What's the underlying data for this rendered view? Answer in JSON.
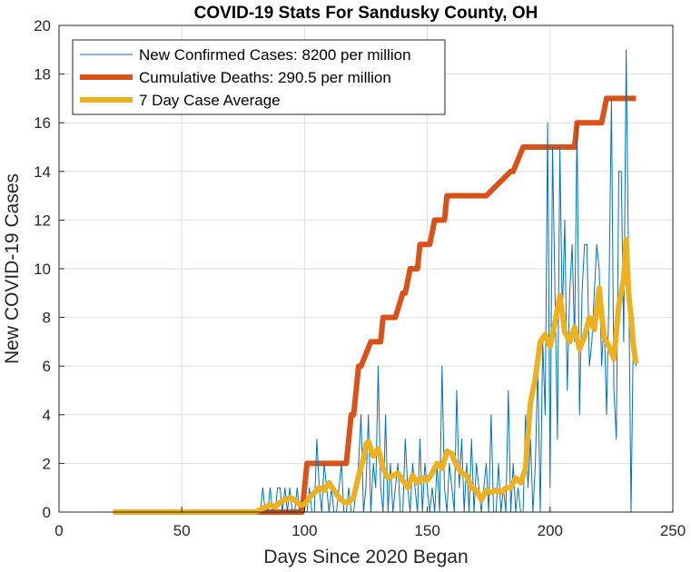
{
  "chart_data": {
    "type": "line",
    "title": "COVID-19 Stats For Sandusky County, OH",
    "xlabel": "Days Since 2020 Began",
    "ylabel": "New COVID-19 Cases",
    "xlim": [
      0,
      250
    ],
    "ylim": [
      0,
      20
    ],
    "xticks": [
      0,
      50,
      100,
      150,
      200,
      250
    ],
    "yticks": [
      0,
      2,
      4,
      6,
      8,
      10,
      12,
      14,
      16,
      18,
      20
    ],
    "grid": true,
    "legend_position": "top-left",
    "series": [
      {
        "name": "New Confirmed Cases: 8200 per million",
        "color": "#0072BD",
        "kind": "thin",
        "x": [
          22,
          30,
          40,
          50,
          60,
          70,
          80,
          82,
          83,
          84,
          85,
          86,
          87,
          88,
          89,
          90,
          91,
          92,
          93,
          94,
          95,
          96,
          97,
          98,
          99,
          100,
          101,
          102,
          103,
          104,
          105,
          106,
          107,
          108,
          109,
          110,
          111,
          112,
          113,
          114,
          115,
          116,
          117,
          118,
          119,
          120,
          121,
          122,
          123,
          124,
          125,
          126,
          127,
          128,
          129,
          130,
          131,
          132,
          133,
          134,
          135,
          136,
          137,
          138,
          139,
          140,
          141,
          142,
          143,
          144,
          145,
          146,
          147,
          148,
          149,
          150,
          151,
          152,
          153,
          154,
          155,
          156,
          157,
          158,
          159,
          160,
          161,
          162,
          163,
          164,
          165,
          166,
          167,
          168,
          169,
          170,
          171,
          172,
          173,
          174,
          175,
          176,
          177,
          178,
          179,
          180,
          181,
          182,
          183,
          184,
          185,
          186,
          187,
          188,
          189,
          190,
          191,
          192,
          193,
          194,
          195,
          196,
          197,
          198,
          199,
          200,
          201,
          202,
          203,
          204,
          205,
          206,
          207,
          208,
          209,
          210,
          211,
          212,
          213,
          214,
          215,
          216,
          217,
          218,
          219,
          220,
          221,
          222,
          223,
          224,
          225,
          226,
          227,
          228,
          229,
          230,
          231,
          232,
          233,
          234,
          235
        ],
        "y": [
          0,
          0,
          0,
          0,
          0,
          0,
          0,
          0,
          1,
          0,
          0,
          1,
          0,
          0,
          1,
          1,
          0,
          1,
          0,
          1,
          0,
          0,
          1,
          0,
          0,
          0,
          0,
          1,
          0,
          0,
          3,
          1,
          0,
          2,
          1,
          0,
          1,
          0,
          0,
          1,
          2,
          0,
          0,
          1,
          0,
          0,
          1,
          2,
          4,
          0,
          1,
          4,
          0,
          2,
          1,
          6,
          1,
          0,
          4,
          0,
          2,
          0,
          1,
          2,
          0,
          0,
          3,
          1,
          0,
          2,
          1,
          0,
          3,
          0,
          2,
          1,
          0,
          1,
          0,
          2,
          0,
          6,
          1,
          0,
          2,
          1,
          0,
          5,
          1,
          3,
          0,
          2,
          0,
          3,
          0,
          2,
          1,
          0,
          1,
          2,
          0,
          4,
          0,
          0,
          2,
          0,
          1,
          0,
          5,
          0,
          2,
          0,
          1,
          0,
          0,
          4,
          1,
          3,
          0,
          2,
          6,
          0,
          7,
          4,
          16,
          1,
          15,
          9,
          3,
          15,
          8,
          12,
          5,
          9,
          11,
          7,
          16,
          4,
          9,
          11,
          11,
          6,
          7,
          9,
          11,
          10,
          6,
          8,
          4,
          9,
          17,
          5,
          3,
          14,
          14,
          7,
          19,
          10,
          0,
          8,
          6
        ]
      },
      {
        "name": "Cumulative Deaths: 290.5 per million",
        "color": "#D95319",
        "kind": "step",
        "x": [
          22,
          95,
          99,
          100,
          101,
          117,
          118,
          119,
          120,
          121,
          122,
          123,
          127,
          128,
          131,
          132,
          136,
          137,
          140,
          141,
          143,
          144,
          146,
          147,
          150,
          151,
          153,
          154,
          157,
          158,
          161,
          162,
          173,
          174,
          184,
          185,
          189,
          190,
          200,
          210,
          211,
          219,
          220,
          221,
          223,
          224,
          235
        ],
        "y": [
          0,
          0,
          0,
          1,
          2,
          2,
          3,
          4,
          4,
          5,
          6,
          6,
          7,
          7,
          7,
          8,
          8,
          8,
          9,
          9,
          10,
          10,
          10,
          11,
          11,
          11,
          12,
          12,
          12,
          13,
          13,
          13,
          13,
          13,
          14,
          14,
          15,
          15,
          15,
          15,
          16,
          16,
          16,
          16,
          17,
          17,
          17
        ]
      },
      {
        "name": "7 Day Case Average",
        "color": "#EDB120",
        "kind": "thick",
        "x": [
          22,
          30,
          40,
          50,
          60,
          70,
          80,
          84,
          86,
          88,
          90,
          92,
          94,
          96,
          98,
          100,
          102,
          104,
          106,
          108,
          110,
          112,
          114,
          116,
          118,
          120,
          122,
          124,
          125,
          126,
          128,
          130,
          132,
          134,
          136,
          138,
          140,
          142,
          144,
          146,
          148,
          150,
          152,
          154,
          156,
          158,
          160,
          162,
          164,
          166,
          168,
          170,
          172,
          174,
          176,
          178,
          180,
          182,
          184,
          186,
          188,
          190,
          192,
          194,
          196,
          198,
          200,
          202,
          204,
          206,
          208,
          210,
          212,
          214,
          216,
          218,
          220,
          222,
          224,
          226,
          228,
          230,
          231,
          232,
          233,
          234,
          235
        ],
        "y": [
          0,
          0,
          0,
          0,
          0,
          0,
          0,
          0.2,
          0.3,
          0.2,
          0.4,
          0.5,
          0.6,
          0.5,
          0.3,
          0.3,
          0.6,
          0.8,
          1.0,
          0.9,
          1.2,
          0.9,
          0.6,
          0.4,
          0.4,
          0.6,
          1.5,
          2.2,
          2.8,
          2.9,
          2.3,
          2.6,
          1.8,
          1.4,
          1.5,
          1.6,
          1.3,
          1.0,
          1.5,
          1.2,
          1.4,
          1.3,
          1.6,
          2.0,
          1.8,
          2.5,
          2.4,
          1.9,
          1.6,
          1.5,
          1.0,
          0.9,
          0.5,
          0.9,
          0.8,
          0.9,
          0.8,
          1.0,
          1.0,
          1.4,
          1.2,
          1.8,
          4.5,
          5.5,
          7.0,
          7.3,
          6.8,
          7.8,
          8.9,
          7.4,
          7.0,
          7.6,
          6.7,
          7.2,
          8.0,
          7.5,
          9.2,
          7.2,
          6.8,
          6.3,
          8.5,
          9.6,
          11.2,
          9.0,
          8.0,
          6.8,
          6.1
        ]
      }
    ]
  }
}
